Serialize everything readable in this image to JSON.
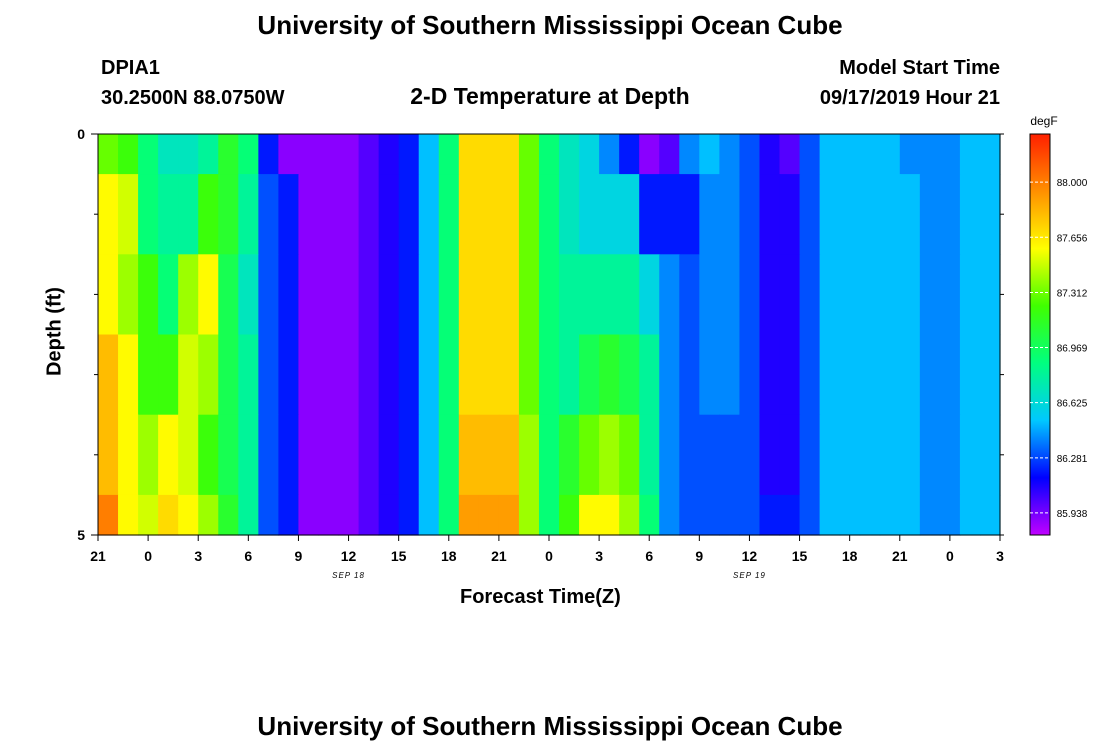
{
  "header": {
    "title": "University of Southern Mississippi Ocean Cube",
    "station": "DPIA1",
    "coords": "30.2500N 88.0750W",
    "plot_title": "2-D Temperature at Depth",
    "model_label": "Model Start Time",
    "model_time": "09/17/2019 Hour 21"
  },
  "footer": {
    "title": "University of Southern Mississippi Ocean Cube"
  },
  "chart_data": {
    "type": "heatmap",
    "title": "2-D Temperature at Depth",
    "xlabel": "Forecast Time(Z)",
    "ylabel": "Depth (ft)",
    "x_tick_labels": [
      "21",
      "0",
      "3",
      "6",
      "9",
      "12",
      "15",
      "18",
      "21",
      "0",
      "3",
      "6",
      "9",
      "12",
      "15",
      "18",
      "21",
      "0",
      "3"
    ],
    "x_range_hours": [
      0,
      54
    ],
    "day_labels": [
      {
        "hour": 15,
        "text": "SEP 18"
      },
      {
        "hour": 39,
        "text": "SEP 19"
      }
    ],
    "y_tick_labels": [
      "0",
      "5"
    ],
    "ylim": [
      0,
      5
    ],
    "depth_bands_ft": [
      0,
      0.5,
      1.5,
      2.5,
      3.5,
      4.5,
      5
    ],
    "colorbar": {
      "unit": "degF",
      "min": 85.8,
      "max": 88.3,
      "tick_labels": [
        "88.000",
        "87.656",
        "87.312",
        "86.969",
        "86.625",
        "86.281",
        "85.938"
      ],
      "tick_values": [
        88.0,
        87.656,
        87.312,
        86.969,
        86.625,
        86.281,
        85.938
      ]
    },
    "color_scale": [
      "#c000ff",
      "#0000ff",
      "#00c8ff",
      "#00ff80",
      "#40ff00",
      "#ffff00",
      "#ff9000",
      "#ff2000"
    ],
    "temperature_rows_degF": [
      [
        87.3,
        87.2,
        86.9,
        86.7,
        86.7,
        86.8,
        87.1,
        86.9,
        86.2,
        85.9,
        85.9,
        85.9,
        85.9,
        86.0,
        86.1,
        86.2,
        86.5,
        86.9,
        87.7,
        87.7,
        87.7,
        87.3,
        86.9,
        86.7,
        86.6,
        86.4,
        86.2,
        85.9,
        86.0,
        86.4,
        86.5,
        86.4,
        86.3,
        86.1,
        86.0,
        86.3,
        86.5,
        86.5,
        86.5,
        86.5,
        86.4,
        86.4,
        86.4,
        86.5,
        86.5
      ],
      [
        87.6,
        87.5,
        86.9,
        86.8,
        86.8,
        87.2,
        87.1,
        86.8,
        86.3,
        86.2,
        85.9,
        85.9,
        85.9,
        86.0,
        86.1,
        86.2,
        86.5,
        86.9,
        87.7,
        87.7,
        87.7,
        87.3,
        86.9,
        86.7,
        86.6,
        86.6,
        86.6,
        86.2,
        86.2,
        86.2,
        86.4,
        86.4,
        86.3,
        86.1,
        86.1,
        86.3,
        86.5,
        86.5,
        86.5,
        86.5,
        86.5,
        86.4,
        86.4,
        86.5,
        86.5
      ],
      [
        87.6,
        87.4,
        87.2,
        86.9,
        87.4,
        87.6,
        87.0,
        86.7,
        86.3,
        86.2,
        85.9,
        85.9,
        85.9,
        86.0,
        86.1,
        86.2,
        86.5,
        86.9,
        87.7,
        87.7,
        87.7,
        87.3,
        86.9,
        86.8,
        86.8,
        86.8,
        86.8,
        86.6,
        86.4,
        86.3,
        86.4,
        86.4,
        86.3,
        86.1,
        86.1,
        86.3,
        86.5,
        86.5,
        86.5,
        86.5,
        86.5,
        86.4,
        86.4,
        86.5,
        86.5
      ],
      [
        87.8,
        87.6,
        87.2,
        87.2,
        87.5,
        87.4,
        87.0,
        86.8,
        86.3,
        86.2,
        85.9,
        85.9,
        85.9,
        86.0,
        86.1,
        86.2,
        86.5,
        86.9,
        87.7,
        87.7,
        87.7,
        87.3,
        86.9,
        86.8,
        87.0,
        87.1,
        87.0,
        86.8,
        86.4,
        86.3,
        86.4,
        86.4,
        86.3,
        86.1,
        86.1,
        86.3,
        86.5,
        86.5,
        86.5,
        86.5,
        86.5,
        86.4,
        86.4,
        86.5,
        86.5
      ],
      [
        87.8,
        87.6,
        87.4,
        87.6,
        87.5,
        87.2,
        87.0,
        86.8,
        86.3,
        86.2,
        85.9,
        85.9,
        85.9,
        86.0,
        86.1,
        86.2,
        86.5,
        86.9,
        87.8,
        87.8,
        87.8,
        87.4,
        86.9,
        87.1,
        87.3,
        87.4,
        87.3,
        86.8,
        86.4,
        86.3,
        86.3,
        86.3,
        86.3,
        86.1,
        86.1,
        86.3,
        86.5,
        86.5,
        86.5,
        86.5,
        86.5,
        86.4,
        86.4,
        86.5,
        86.5
      ],
      [
        88.0,
        87.6,
        87.5,
        87.7,
        87.6,
        87.4,
        87.1,
        86.8,
        86.3,
        86.2,
        85.9,
        85.9,
        85.9,
        86.0,
        86.1,
        86.2,
        86.5,
        86.9,
        87.9,
        87.9,
        87.9,
        87.4,
        86.9,
        87.2,
        87.6,
        87.6,
        87.4,
        86.9,
        86.4,
        86.3,
        86.3,
        86.3,
        86.3,
        86.2,
        86.2,
        86.3,
        86.5,
        86.5,
        86.5,
        86.5,
        86.5,
        86.4,
        86.4,
        86.5,
        86.5
      ]
    ]
  }
}
